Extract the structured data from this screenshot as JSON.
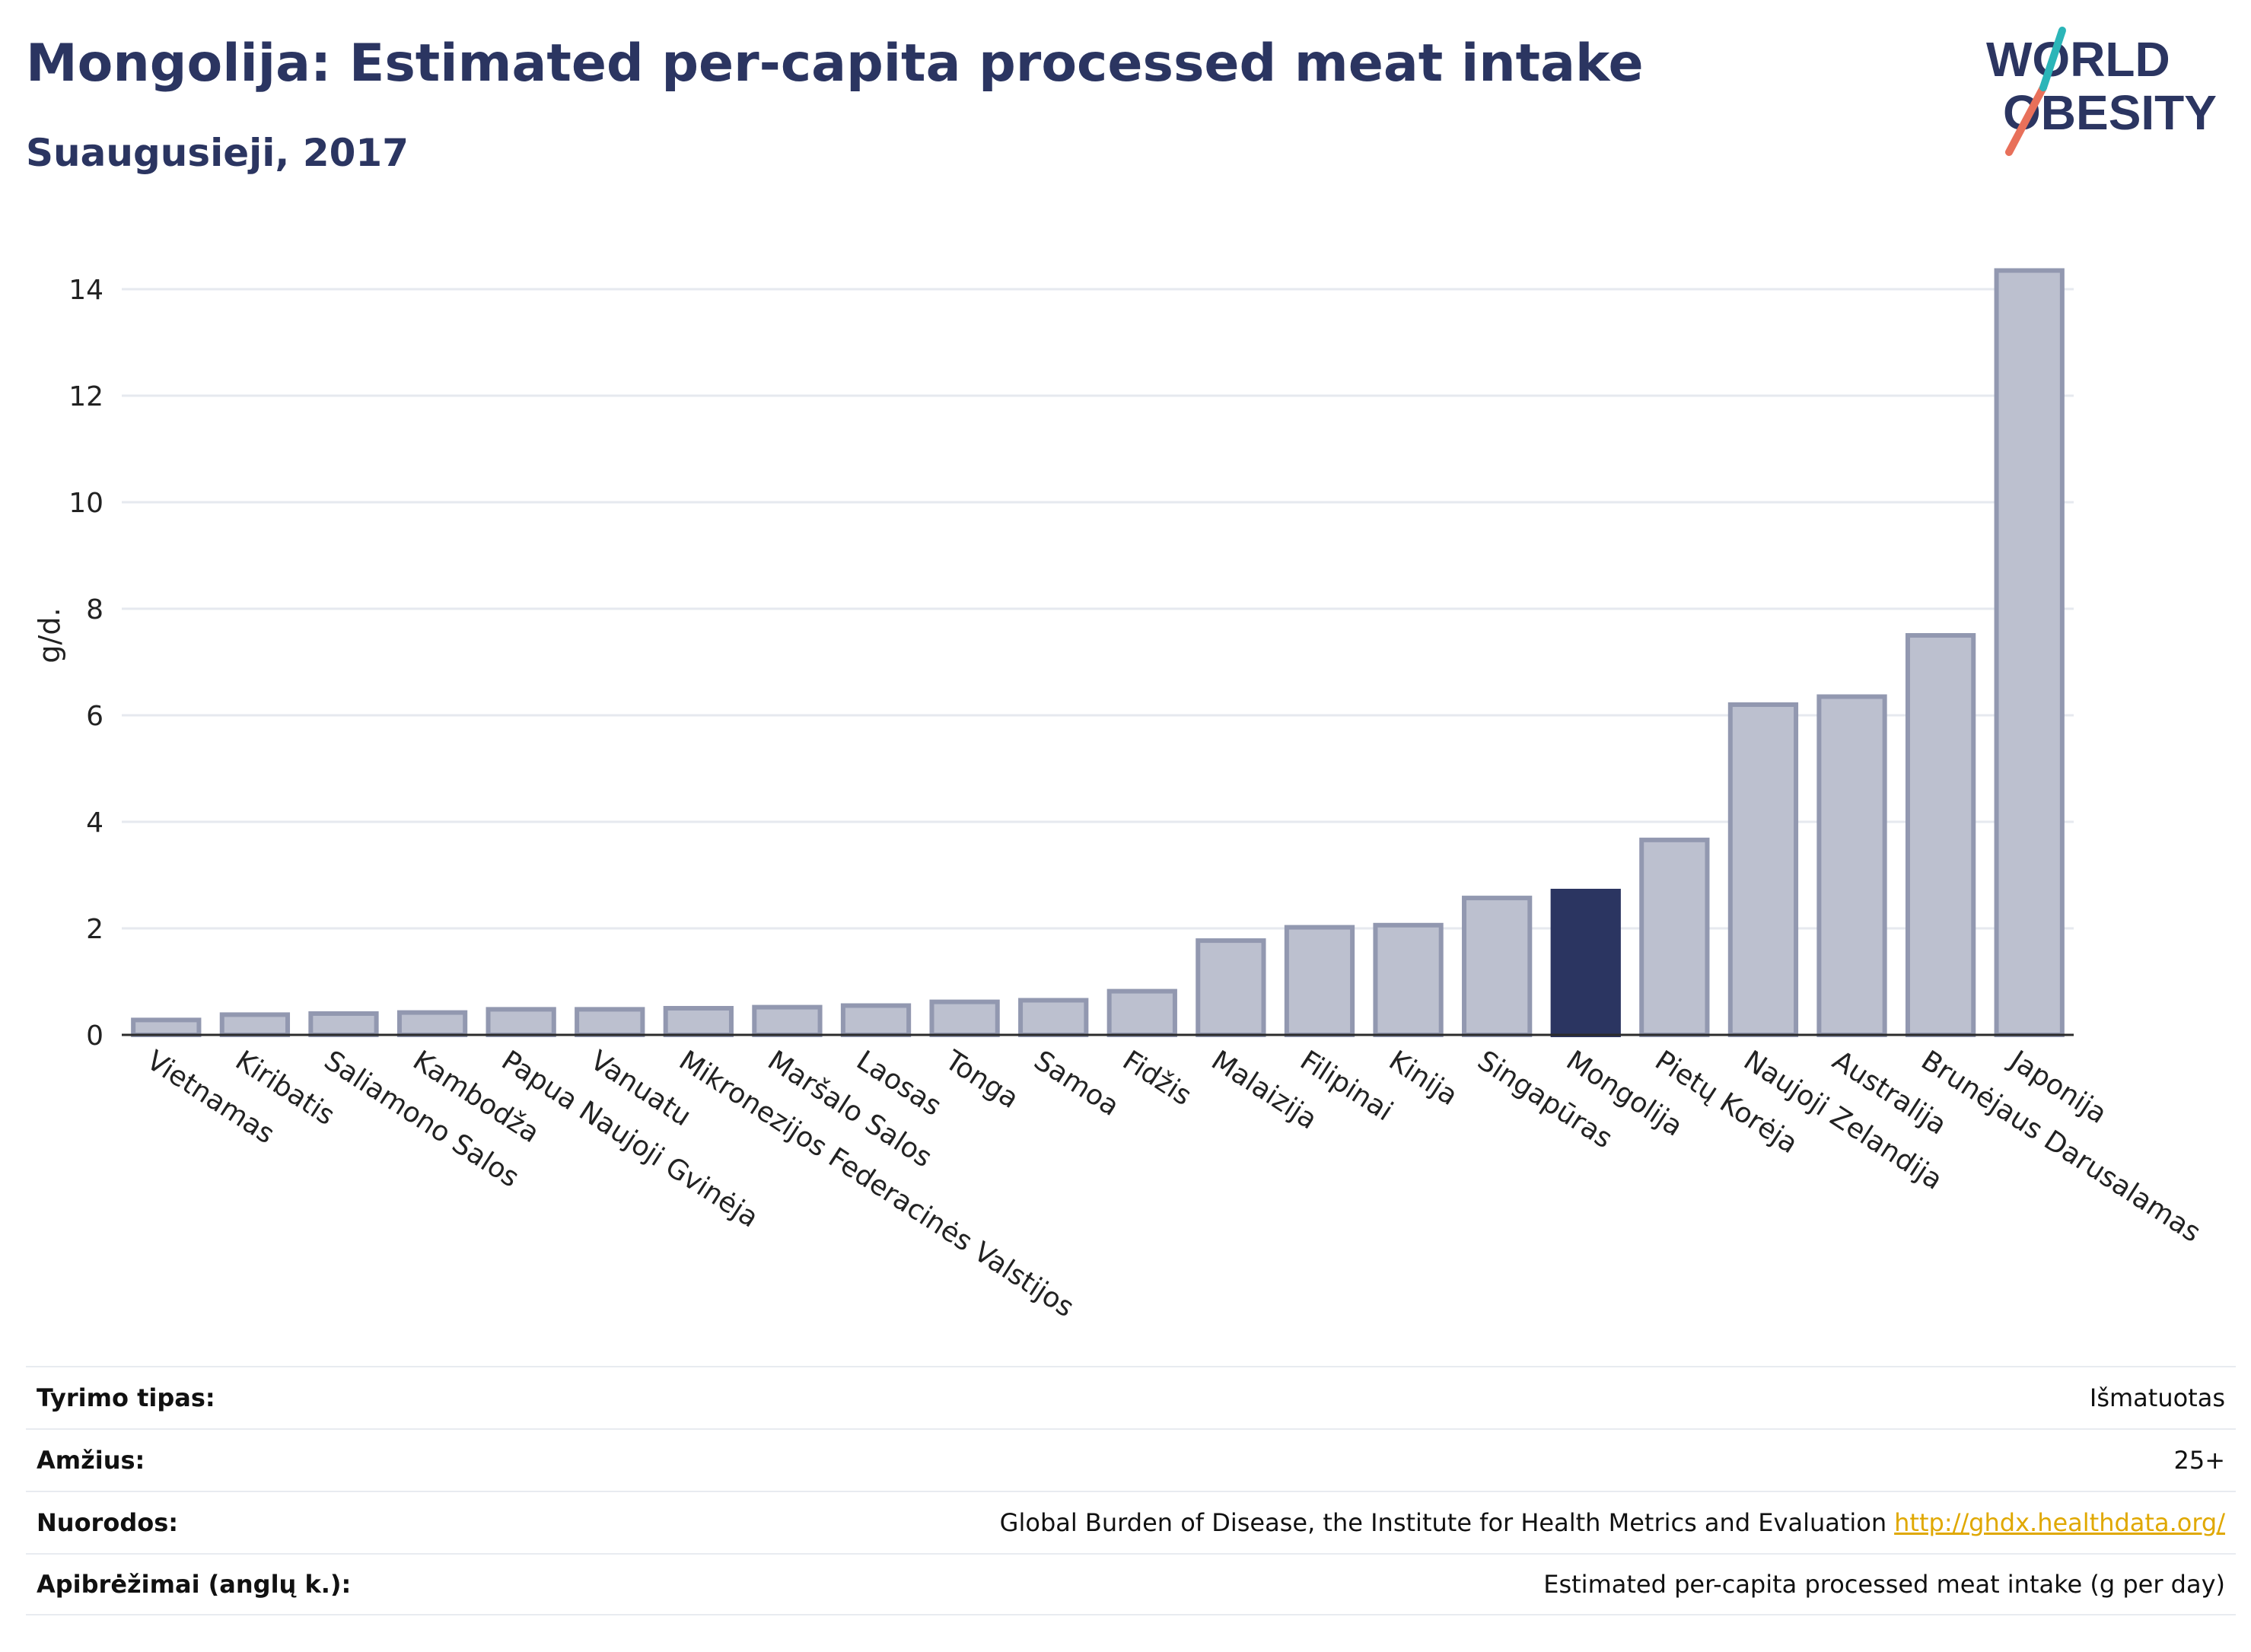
{
  "header": {
    "title": "Mongolija: Estimated per-capita processed meat intake",
    "subtitle": "Suaugusieji, 2017"
  },
  "logo": {
    "line1": "WORLD",
    "line2": "OBESITY",
    "accent": "#e8705a",
    "accent2": "#2bb5b8"
  },
  "colors": {
    "bar": "#bcc0cf",
    "bar_border": "#9298b0",
    "highlight": "#2b3561",
    "grid": "#e6e9ef"
  },
  "chart_data": {
    "type": "bar",
    "categories": [
      "Vietnamas",
      "Kiribatis",
      "Saliamono Salos",
      "Kambodža",
      "Papua Naujoji Gvinėja",
      "Vanuatu",
      "Mikronezijos Federacinės Valstijos",
      "Maršalo Salos",
      "Laosas",
      "Tonga",
      "Samoa",
      "Fidžis",
      "Malaizija",
      "Filipinai",
      "Kinija",
      "Singapūras",
      "Mongolija",
      "Pietų Korėja",
      "Naujoji Zelandija",
      "Australija",
      "Brunėjaus Darusalamas",
      "Japonija"
    ],
    "values": [
      0.28,
      0.38,
      0.4,
      0.42,
      0.48,
      0.48,
      0.5,
      0.52,
      0.55,
      0.62,
      0.65,
      0.82,
      1.77,
      2.02,
      2.06,
      2.57,
      2.7,
      3.66,
      6.2,
      6.35,
      7.5,
      14.35
    ],
    "highlight": "Mongolija",
    "ylabel": "g/d.",
    "ylim": [
      0,
      15
    ],
    "yticks": [
      0,
      2,
      4,
      6,
      8,
      10,
      12,
      14
    ],
    "grid": true
  },
  "meta": [
    {
      "key": "Tyrimo tipas:",
      "value": "Išmatuotas",
      "link": ""
    },
    {
      "key": "Amžius:",
      "value": "25+",
      "link": ""
    },
    {
      "key": "Nuorodos:",
      "value": "Global Burden of Disease, the Institute for Health Metrics and Evaluation",
      "link": "http://ghdx.healthdata.org/"
    },
    {
      "key": "Apibrėžimai (anglų k.):",
      "value": "Estimated per-capita processed meat intake (g per day)",
      "link": ""
    }
  ]
}
